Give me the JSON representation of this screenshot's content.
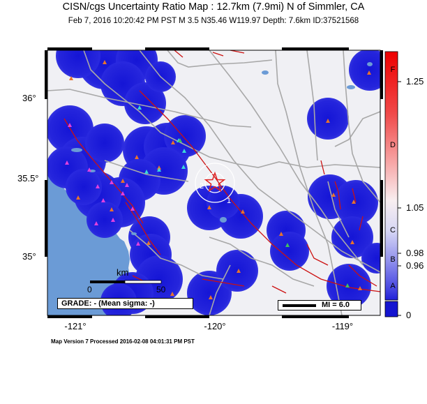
{
  "title": "CISN/cgs Uncertainty Ratio Map : 12.7km (7.9mi) N of Simmler, CA",
  "subtitle": "Feb  7, 2016 10:20:42 PM PST    M 3.5    N35.46 W119.97    Depth: 7.6km    ID:37521568",
  "lat_labels": [
    "36°",
    "35.5°",
    "35°"
  ],
  "lon_labels": [
    "-121°",
    "-120°",
    "-119°"
  ],
  "scale_bar": {
    "unit": "km",
    "start": "0",
    "end": "50"
  },
  "grade_text": "GRADE: - (Mean sigma: -)",
  "mi_legend": "MI = 6.0",
  "colorbar": {
    "ticks": [
      "1.25",
      "1.05",
      "0.98",
      "0.96",
      "0"
    ],
    "letters": [
      "F",
      "D",
      "C",
      "B",
      "A"
    ]
  },
  "contour_labels": [
    "2",
    "1"
  ],
  "footer": "Map Version 7 Processed 2016-02-08 04:01:31 PM PST",
  "colors": {
    "ocean": "#6b9bd6",
    "land": "#f0f0f4",
    "uncertainty_low": "#1e1ed8",
    "fault": "#cc1111",
    "road": "#a8a8a8",
    "epicenter": "#e02020"
  },
  "icons": {
    "epicenter": "red-star-icon",
    "station_a": "orange-triangle-icon",
    "station_b": "cyan-triangle-icon",
    "station_c": "magenta-triangle-icon",
    "station_d": "green-triangle-icon"
  }
}
